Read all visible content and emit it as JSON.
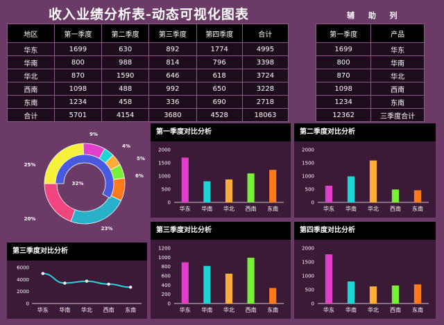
{
  "page": {
    "title": "收入业绩分析表-动态可视化图表",
    "aux_title": "辅 助 列"
  },
  "main_table": {
    "headers": [
      "地区",
      "第一季度",
      "第二季度",
      "第三季度",
      "第四季度",
      "合计"
    ],
    "rows": [
      [
        "华东",
        "1699",
        "630",
        "892",
        "1774",
        "4995"
      ],
      [
        "华南",
        "800",
        "988",
        "814",
        "796",
        "3398"
      ],
      [
        "华北",
        "870",
        "1590",
        "646",
        "618",
        "3724"
      ],
      [
        "西南",
        "1098",
        "488",
        "992",
        "650",
        "3228"
      ],
      [
        "东南",
        "1234",
        "458",
        "336",
        "690",
        "2718"
      ],
      [
        "合计",
        "5701",
        "4154",
        "3680",
        "4528",
        "18063"
      ]
    ]
  },
  "aux_table": {
    "headers": [
      "第一季度",
      "产品"
    ],
    "rows": [
      [
        "1699",
        "华东"
      ],
      [
        "800",
        "华南"
      ],
      [
        "870",
        "华北"
      ],
      [
        "1098",
        "西南"
      ],
      [
        "1234",
        "东南"
      ],
      [
        "12362",
        "三季度合计"
      ]
    ]
  },
  "colors": {
    "bars": [
      "#e040c8",
      "#1ad6d6",
      "#ffad3a",
      "#7aef3a",
      "#ff7a1a"
    ],
    "line": "#2bd3e0",
    "outer_ring": [
      "#e040c8",
      "#1ad6d6",
      "#ffad3a",
      "#7aef3a",
      "#ff7a1a",
      "#27b0c8",
      "#f0457f",
      "#f6f03a"
    ],
    "inner_ring": "#4a5ae0"
  },
  "chart_data": [
    {
      "type": "pie",
      "title": "",
      "inner_label": "32%",
      "outer_labels": [
        "9%",
        "4%",
        "5%",
        "6%",
        "23%",
        "20%",
        "25%"
      ]
    },
    {
      "type": "bar",
      "title": "第一季度对比分析",
      "categories": [
        "华东",
        "华南",
        "华北",
        "西南",
        "东南"
      ],
      "values": [
        1699,
        800,
        870,
        1098,
        1234
      ],
      "ylim": [
        0,
        2000
      ],
      "yticks": [
        "0",
        "500",
        "1000",
        "1500",
        "2000"
      ]
    },
    {
      "type": "bar",
      "title": "第二季度对比分析",
      "categories": [
        "华东",
        "华南",
        "华北",
        "西南",
        "东南"
      ],
      "values": [
        630,
        988,
        1590,
        488,
        458
      ],
      "ylim": [
        0,
        2000
      ],
      "yticks": [
        "0",
        "500",
        "1000",
        "1500",
        "2000"
      ]
    },
    {
      "type": "bar",
      "title": "第三季度对比分析",
      "categories": [
        "华东",
        "华南",
        "华北",
        "西南",
        "东南"
      ],
      "values": [
        892,
        814,
        646,
        992,
        336
      ],
      "ylim": [
        0,
        1200
      ],
      "yticks": [
        "0",
        "200",
        "400",
        "600",
        "800",
        "1000",
        "1200"
      ]
    },
    {
      "type": "bar",
      "title": "第四季度对比分析",
      "categories": [
        "华东",
        "华南",
        "华北",
        "西南",
        "东南"
      ],
      "values": [
        1774,
        796,
        618,
        650,
        690
      ],
      "ylim": [
        0,
        2000
      ],
      "yticks": [
        "0",
        "500",
        "1000",
        "1500",
        "2000"
      ]
    },
    {
      "type": "line",
      "title": "第三季度对比分析",
      "categories": [
        "华东",
        "华南",
        "华北",
        "西南",
        "东南"
      ],
      "values": [
        4995,
        3398,
        3724,
        3228,
        2718
      ],
      "ylim": [
        0,
        6000
      ],
      "yticks": [
        "0",
        "2000",
        "4000",
        "6000"
      ]
    }
  ]
}
